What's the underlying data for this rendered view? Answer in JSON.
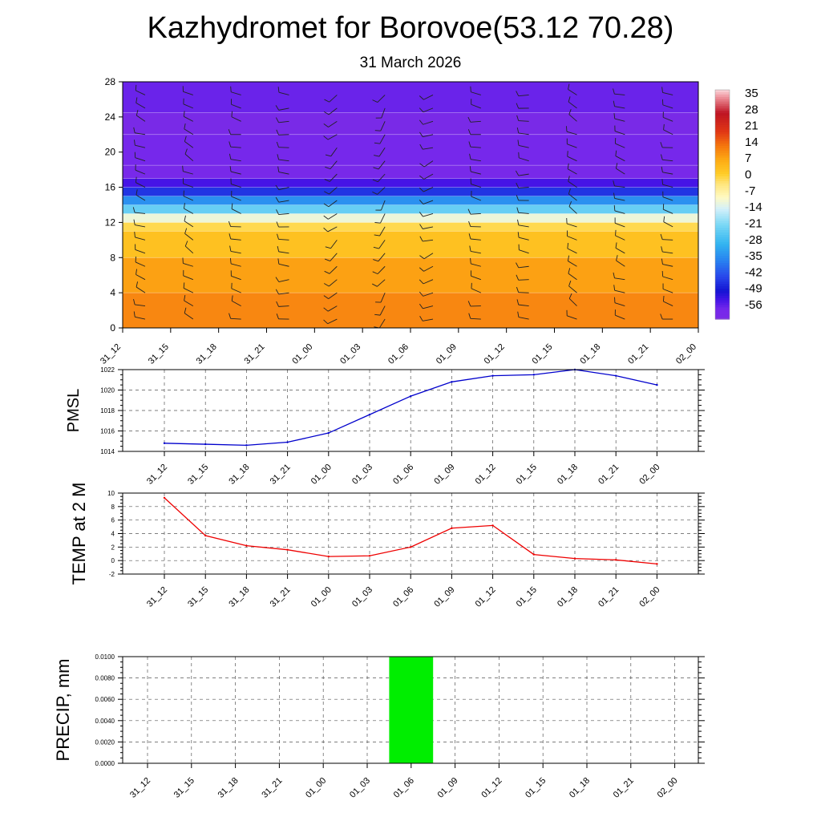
{
  "title": "Kazhydromet for Borovoe(53.12 70.28)",
  "subtitle": "31 March 2026",
  "times": [
    "31_12",
    "31_15",
    "31_18",
    "31_21",
    "01_00",
    "01_03",
    "01_06",
    "01_09",
    "01_12",
    "01_15",
    "01_18",
    "01_21",
    "02_00"
  ],
  "colors": {
    "pmsl_line": "#0000cc",
    "temp_line": "#ee0000",
    "precip_bar": "#00ee00",
    "grid": "#555555"
  },
  "chart_data": [
    {
      "type": "heatmap",
      "name": "temperature-wind cross section",
      "ylabel": "",
      "yticks": [
        0,
        4,
        8,
        12,
        16,
        20,
        24,
        28
      ],
      "ylim": [
        0,
        28
      ],
      "colorbar": {
        "labels": [
          "35",
          "28",
          "21",
          "14",
          "7",
          "0",
          "-7",
          "-14",
          "-21",
          "-28",
          "-35",
          "-42",
          "-49",
          "-56"
        ],
        "range": [
          -60,
          38
        ]
      },
      "layers": [
        {
          "from": 0,
          "to": 4,
          "value": 12
        },
        {
          "from": 4,
          "to": 8,
          "value": 9
        },
        {
          "from": 8,
          "to": 11,
          "value": 4
        },
        {
          "from": 11,
          "to": 12,
          "value": 0
        },
        {
          "from": 12,
          "to": 13,
          "value": -10
        },
        {
          "from": 13,
          "to": 14,
          "value": -22
        },
        {
          "from": 14,
          "to": 15,
          "value": -33
        },
        {
          "from": 15,
          "to": 16,
          "value": -44
        },
        {
          "from": 16,
          "to": 17,
          "value": -52
        },
        {
          "from": 17,
          "to": 18.5,
          "value": -58
        },
        {
          "from": 18.5,
          "to": 22,
          "value": -56
        },
        {
          "from": 22,
          "to": 24.5,
          "value": -59
        },
        {
          "from": 24.5,
          "to": 28,
          "value": -55
        }
      ],
      "wind_direction_deg": [
        290,
        300,
        285,
        270,
        230,
        215,
        250,
        280,
        275,
        300,
        290,
        285,
        280
      ]
    },
    {
      "type": "line",
      "name": "PMSL",
      "ylabel": "PMSL",
      "yticks": [
        1014,
        1016,
        1018,
        1020,
        1022
      ],
      "ylim": [
        1014,
        1022
      ],
      "values": [
        1014.8,
        1014.7,
        1014.6,
        1014.9,
        1015.8,
        1017.6,
        1019.4,
        1020.8,
        1021.4,
        1021.5,
        1022.0,
        1021.4,
        1020.5
      ]
    },
    {
      "type": "line",
      "name": "TEMP at 2 M",
      "ylabel": "TEMP at 2 M",
      "yticks": [
        -2,
        0,
        2,
        4,
        6,
        8,
        10
      ],
      "ylim": [
        -2,
        10
      ],
      "values": [
        9.3,
        3.7,
        2.2,
        1.6,
        0.6,
        0.7,
        2.0,
        4.8,
        5.2,
        0.9,
        0.3,
        0.1,
        -0.5
      ]
    },
    {
      "type": "bar",
      "name": "PRECIP, mm",
      "ylabel": "PRECIP, mm",
      "yticks": [
        "0.0000",
        "0.0020",
        "0.0040",
        "0.0060",
        "0.0080",
        "0.0100"
      ],
      "ylim": [
        0,
        0.01
      ],
      "values": [
        0,
        0,
        0,
        0,
        0,
        0,
        0.01,
        0,
        0,
        0,
        0,
        0,
        0
      ]
    }
  ]
}
